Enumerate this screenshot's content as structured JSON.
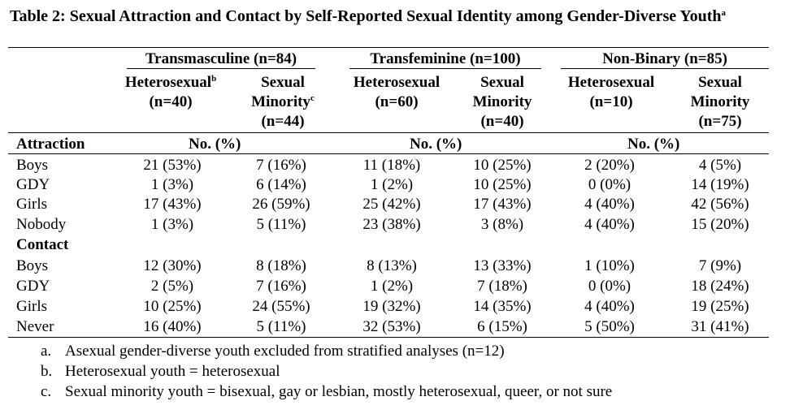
{
  "title": "Table 2: Sexual Attraction and Contact by Self-Reported Sexual Identity among Gender-Diverse Youth",
  "title_sup": "a",
  "groups": [
    {
      "label": "Transmasculine (n=84)"
    },
    {
      "label": "Transfeminine (n=100)"
    },
    {
      "label": "Non-Binary (n=85)"
    }
  ],
  "subheaders": [
    {
      "line1": "Heterosexual",
      "sup": "b",
      "line2": "(n=40)",
      "line3": ""
    },
    {
      "line1": "Sexual",
      "line2": "Minority",
      "sup": "c",
      "line3": "(n=44)"
    },
    {
      "line1": "Heterosexual",
      "sup": "",
      "line2": "(n=60)",
      "line3": ""
    },
    {
      "line1": "Sexual",
      "line2": "Minority",
      "sup": "",
      "line3": "(n=40)"
    },
    {
      "line1": "Heterosexual",
      "sup": "",
      "line2": "(n=10)",
      "line3": ""
    },
    {
      "line1": "Sexual",
      "line2": "Minority",
      "sup": "",
      "line3": "(n=75)"
    }
  ],
  "no_pct_label": "No. (%)",
  "sections": [
    {
      "label": "Attraction",
      "rows": [
        {
          "label": "Boys",
          "values": [
            "21 (53%)",
            "7 (16%)",
            "11 (18%)",
            "10 (25%)",
            "2 (20%)",
            "4 (5%)"
          ]
        },
        {
          "label": "GDY",
          "values": [
            "1 (3%)",
            "6 (14%)",
            "1 (2%)",
            "10 (25%)",
            "0 (0%)",
            "14 (19%)"
          ]
        },
        {
          "label": "Girls",
          "values": [
            "17 (43%)",
            "26 (59%)",
            "25 (42%)",
            "17 (43%)",
            "4 (40%)",
            "42 (56%)"
          ]
        },
        {
          "label": "Nobody",
          "values": [
            "1 (3%)",
            "5 (11%)",
            "23 (38%)",
            "3 (8%)",
            "4 (40%)",
            "15 (20%)"
          ]
        }
      ]
    },
    {
      "label": "Contact",
      "rows": [
        {
          "label": "Boys",
          "values": [
            "12 (30%)",
            "8 (18%)",
            "8 (13%)",
            "13 (33%)",
            "1 (10%)",
            "7 (9%)"
          ]
        },
        {
          "label": "GDY",
          "values": [
            "2 (5%)",
            "7 (16%)",
            "1 (2%)",
            "7 (18%)",
            "0 (0%)",
            "18 (24%)"
          ]
        },
        {
          "label": "Girls",
          "values": [
            "10 (25%)",
            "24 (55%)",
            "19 (32%)",
            "14 (35%)",
            "4 (40%)",
            "19 (25%)"
          ]
        },
        {
          "label": "Never",
          "values": [
            "16 (40%)",
            "5 (11%)",
            "32 (53%)",
            "6 (15%)",
            "5 (50%)",
            "31 (41%)"
          ]
        }
      ]
    }
  ],
  "footnotes": [
    {
      "label": "a.",
      "text": "Asexual gender-diverse youth excluded from stratified analyses (n=12)"
    },
    {
      "label": "b.",
      "text": "Heterosexual youth = heterosexual"
    },
    {
      "label": "c.",
      "text": "Sexual minority youth = bisexual, gay or lesbian, mostly heterosexual, queer, or not sure"
    }
  ]
}
